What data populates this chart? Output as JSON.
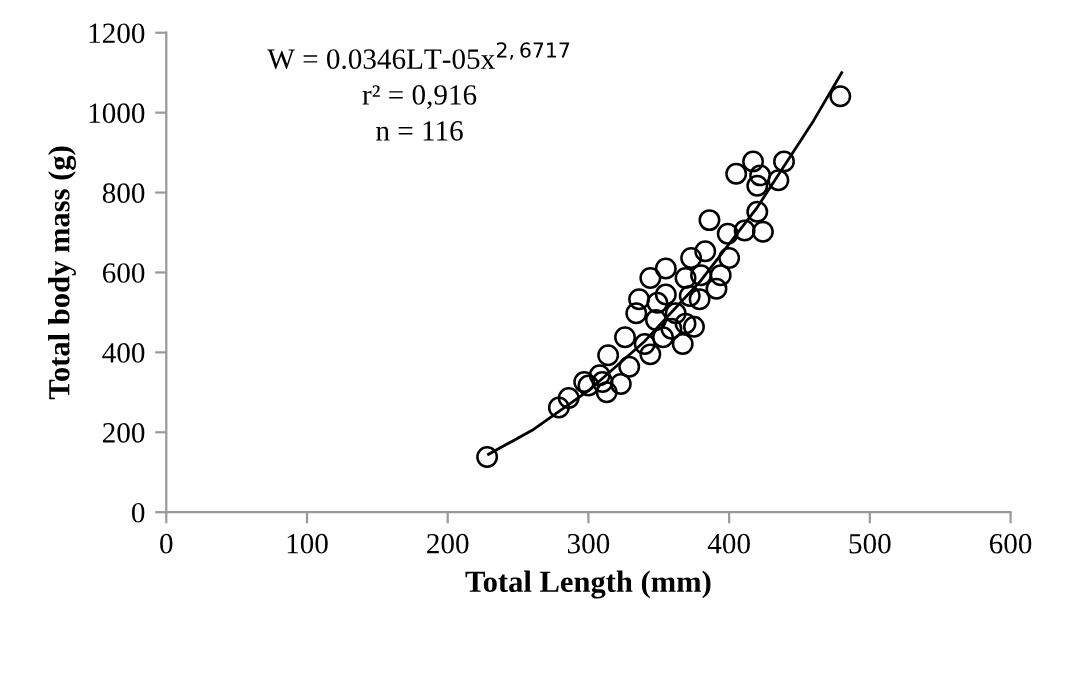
{
  "chart_data": {
    "type": "scatter",
    "xlabel": "Total Length (mm)",
    "ylabel": "Total body mass (g)",
    "annotations": [
      "W = 0.0346LT-05x$^{2,6717}$",
      "r² = 0,916",
      "n = 116"
    ],
    "xlim": [
      0,
      600
    ],
    "xticks": [
      0,
      100,
      200,
      300,
      400,
      500,
      600
    ],
    "ylim": [
      0,
      1200
    ],
    "yticks": [
      0,
      200,
      400,
      600,
      800,
      1000,
      1200
    ],
    "grid": false,
    "legend": false,
    "marker": "circle",
    "series": [
      {
        "color": "#000000",
        "x": [
          228,
          279,
          286,
          297,
          300,
          308,
          310,
          314,
          313,
          323,
          326,
          329,
          334,
          336,
          340,
          344,
          344,
          348,
          349,
          353,
          355,
          355,
          359,
          362,
          367,
          369,
          369,
          372,
          373,
          375,
          379,
          380,
          383,
          386,
          391,
          394,
          399,
          400,
          405,
          411,
          417,
          420,
          420,
          422,
          424,
          435,
          439,
          479
        ],
        "values": [
          138,
          262,
          286,
          326,
          317,
          343,
          326,
          393,
          300,
          321,
          438,
          364,
          498,
          533,
          421,
          586,
          395,
          481,
          524,
          438,
          610,
          545,
          459,
          498,
          421,
          472,
          586,
          541,
          636,
          464,
          533,
          593,
          653,
          731,
          559,
          593,
          697,
          636,
          847,
          705,
          878,
          817,
          752,
          843,
          702,
          831,
          878,
          1041
        ]
      },
      {
        "type": "line",
        "color": "#000000",
        "line_style": "solid",
        "marker": "none",
        "x": [
          229,
          260,
          300,
          340,
          380,
          420,
          460,
          480
        ],
        "values": [
          145,
          205,
          304,
          428,
          580,
          763,
          980,
          1100
        ]
      }
    ]
  }
}
